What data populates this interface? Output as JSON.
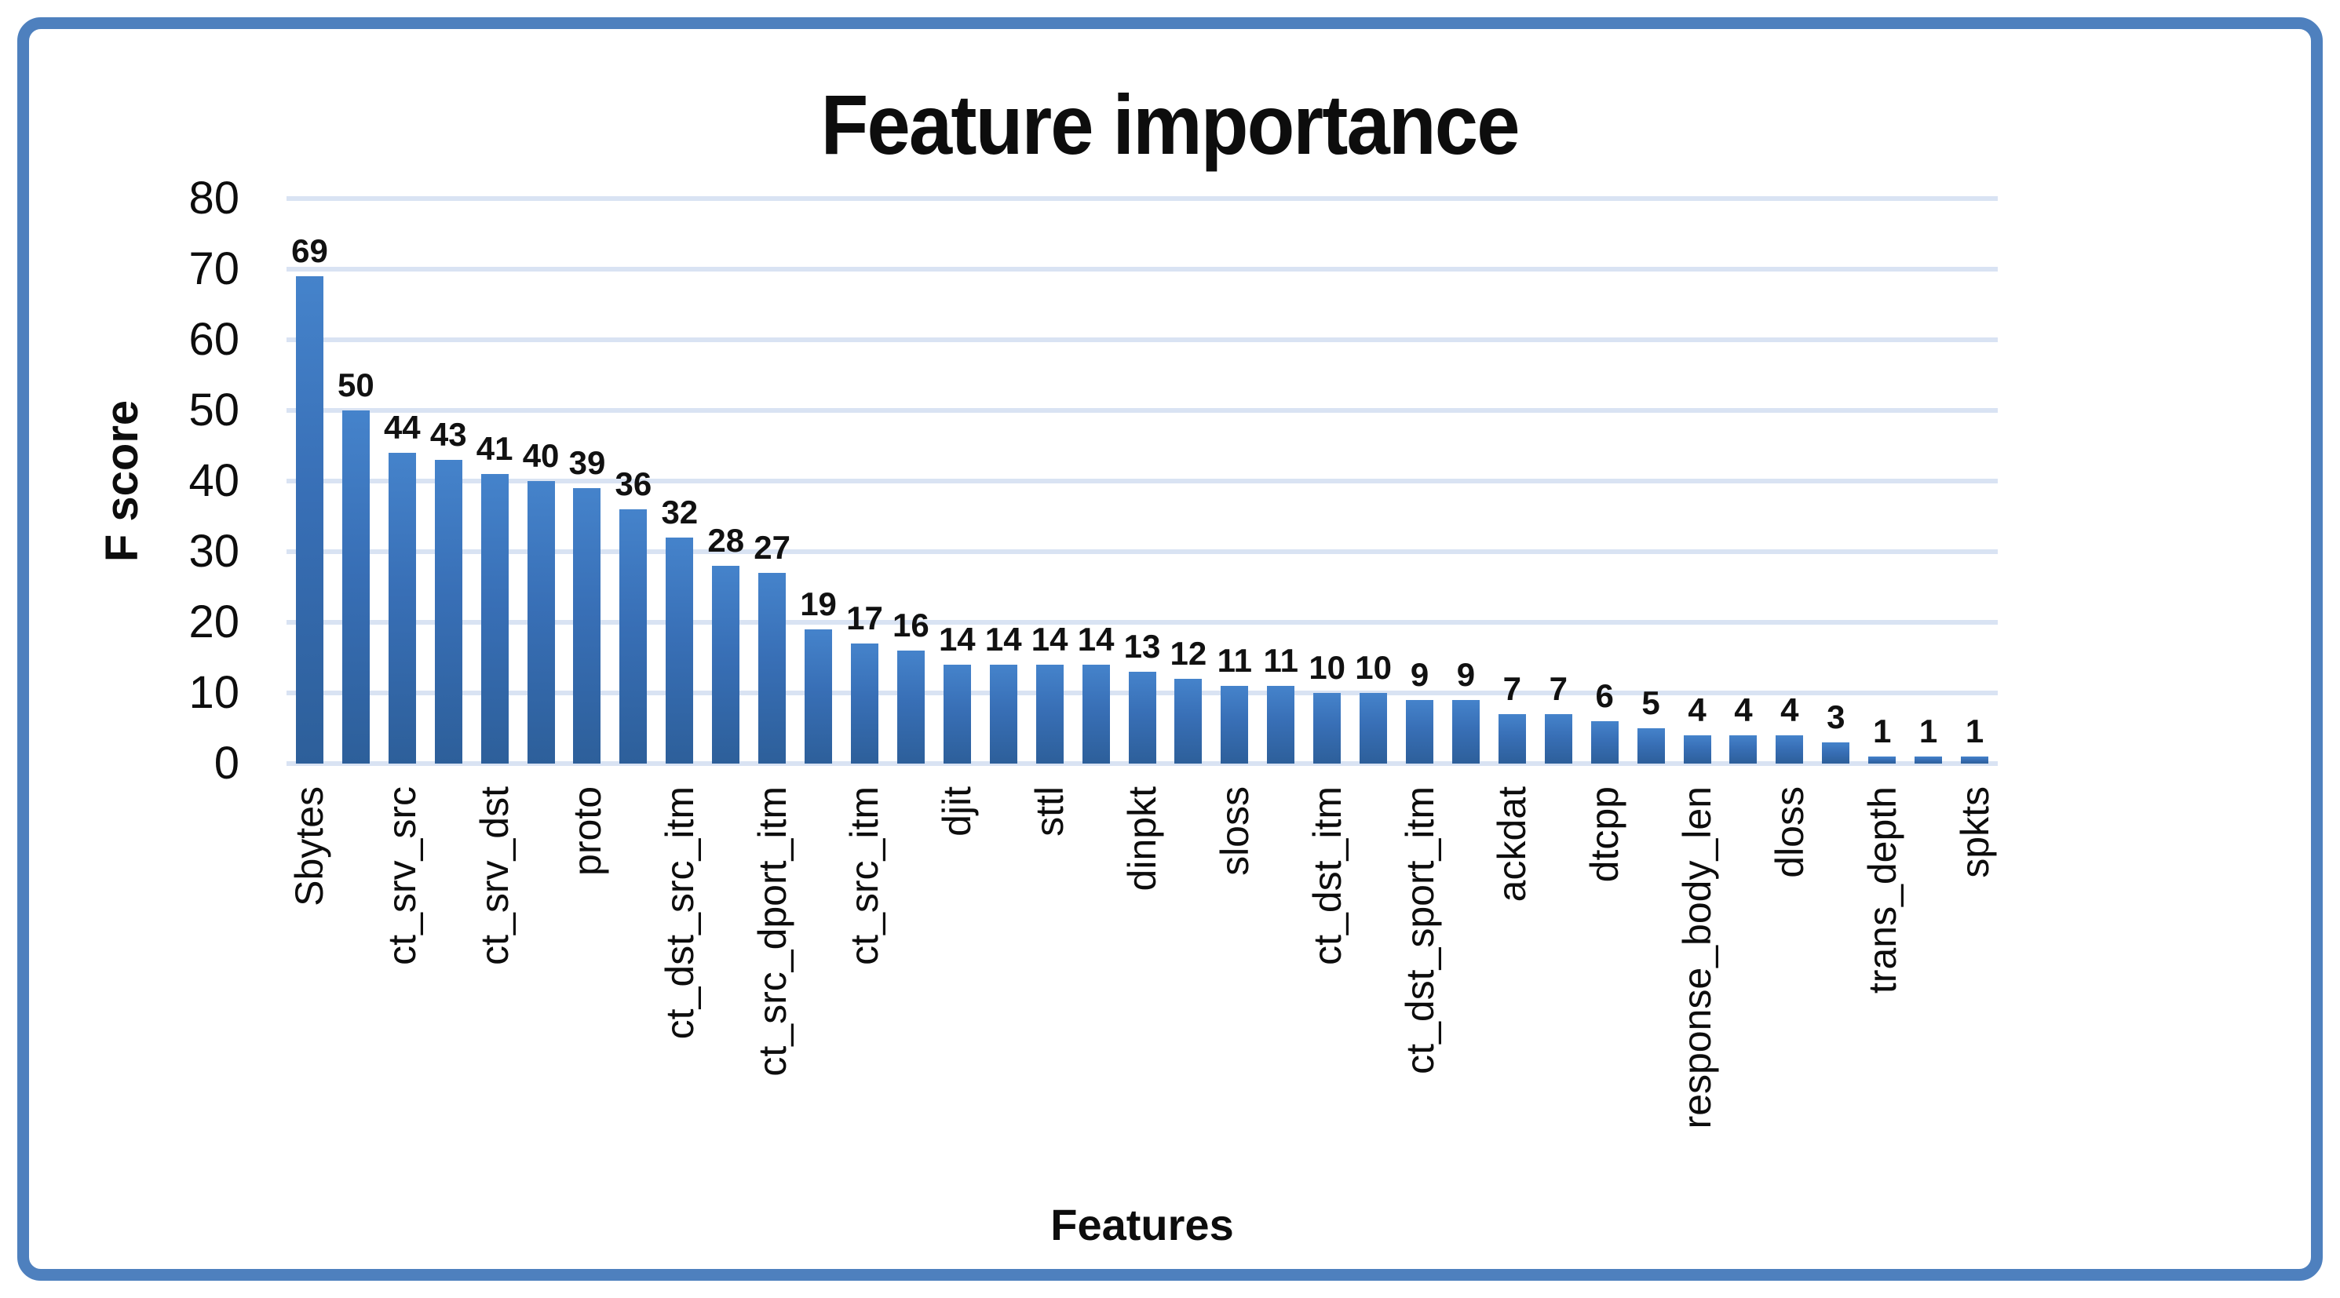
{
  "page": {
    "background": "#ffffff",
    "frame_color": "#4e80be"
  },
  "chart_data": {
    "type": "bar",
    "title": "Feature importance",
    "xlabel": "Features",
    "ylabel": "F score",
    "ylim": [
      0,
      80
    ],
    "yticks": [
      0,
      10,
      20,
      30,
      40,
      50,
      60,
      70,
      80
    ],
    "grid": true,
    "legend": false,
    "bar_color": "#3b76bf",
    "bar_gradient_top": "#4583cb",
    "bar_gradient_bottom": "#2d5f9a",
    "gridline_color": "#d9e3f3",
    "values": [
      69,
      50,
      44,
      43,
      41,
      40,
      39,
      36,
      32,
      28,
      27,
      19,
      17,
      16,
      14,
      14,
      14,
      14,
      13,
      12,
      11,
      11,
      10,
      10,
      9,
      9,
      7,
      7,
      6,
      5,
      4,
      4,
      4,
      3,
      1,
      1,
      1
    ],
    "data_labels_visible": true,
    "x_tick_labels": [
      "Sbytes",
      "ct_srv_src",
      "ct_srv_dst",
      "proto",
      "ct_dst_src_itm",
      "ct_src_dport_itm",
      "ct_src_itm",
      "djit",
      "sttl",
      "dinpkt",
      "sloss",
      "ct_dst_itm",
      "ct_dst_sport_itm",
      "ackdat",
      "dtcpp",
      "response_body_len",
      "dloss",
      "trans_depth",
      "spkts"
    ],
    "x_tick_every": 2
  }
}
